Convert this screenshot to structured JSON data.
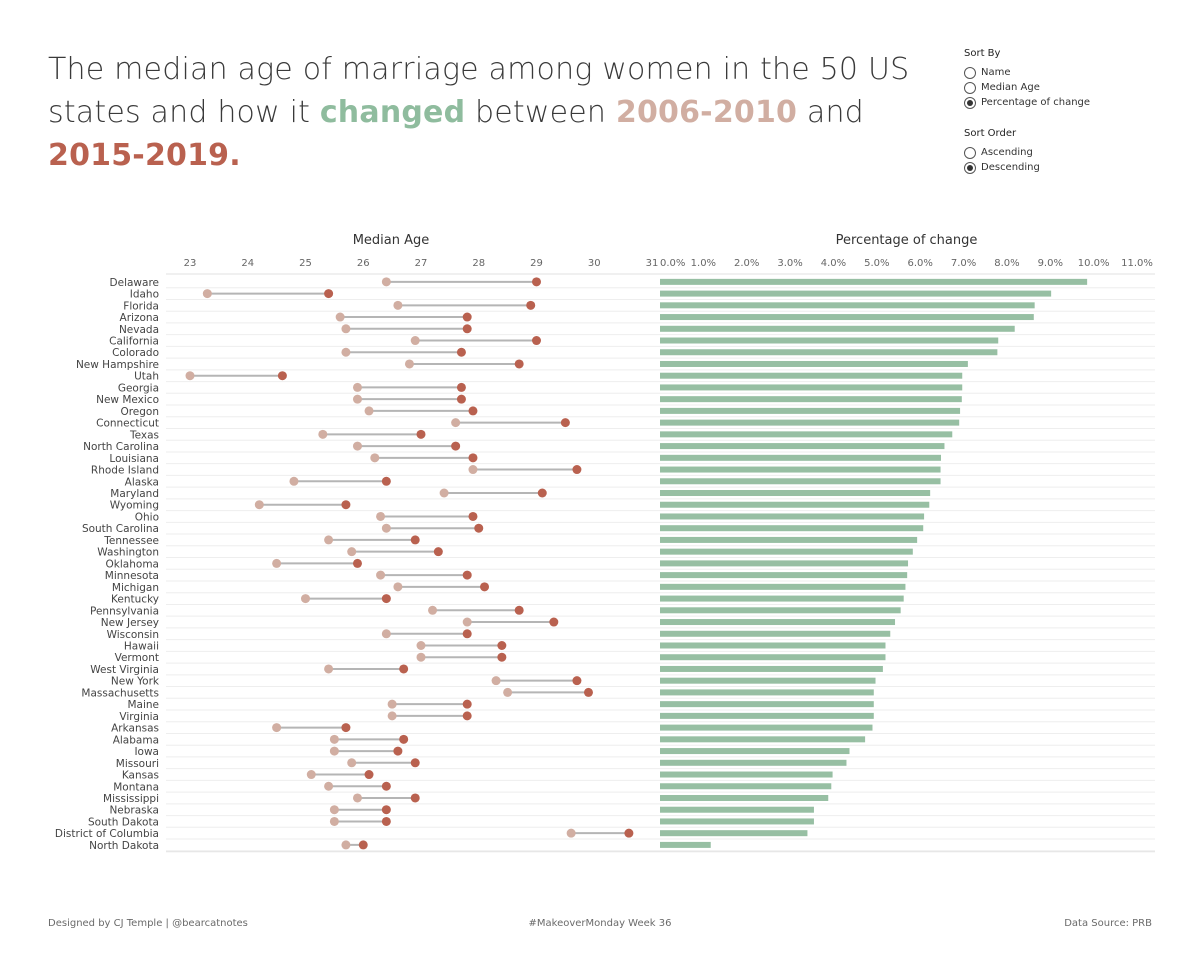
{
  "title": {
    "part1": "The median age of marriage among women in the 50 US states and how it ",
    "changed": "changed",
    "part2": " between ",
    "period1": "2006-2010",
    "part3": " and ",
    "period2": "2015-2019."
  },
  "colors": {
    "changed": "#8fbc9e",
    "period1": "#d1aea2",
    "period2": "#b9614f",
    "bar": "#97bfa3",
    "connector": "#b5b5b5",
    "title": "#3a3a3a"
  },
  "controls": {
    "sort_by": {
      "title": "Sort By",
      "options": [
        "Name",
        "Median Age",
        "Percentage of change"
      ],
      "selected": 2
    },
    "sort_order": {
      "title": "Sort Order",
      "options": [
        "Ascending",
        "Descending"
      ],
      "selected": 1
    }
  },
  "chart_data": [
    {
      "type": "dumbbell",
      "title": "Median Age",
      "xlim": [
        23,
        31
      ],
      "x_ticks": [
        "23",
        "24",
        "25",
        "26",
        "27",
        "28",
        "29",
        "30",
        "31"
      ],
      "categories": [
        "Delaware",
        "Idaho",
        "Florida",
        "Arizona",
        "Nevada",
        "California",
        "Colorado",
        "New Hampshire",
        "Utah",
        "Georgia",
        "New Mexico",
        "Oregon",
        "Connecticut",
        "Texas",
        "North Carolina",
        "Louisiana",
        "Rhode Island",
        "Alaska",
        "Maryland",
        "Wyoming",
        "Ohio",
        "South Carolina",
        "Tennessee",
        "Washington",
        "Oklahoma",
        "Minnesota",
        "Michigan",
        "Kentucky",
        "Pennsylvania",
        "New Jersey",
        "Wisconsin",
        "Hawaii",
        "Vermont",
        "West Virginia",
        "New York",
        "Massachusetts",
        "Maine",
        "Virginia",
        "Arkansas",
        "Alabama",
        "Iowa",
        "Missouri",
        "Kansas",
        "Montana",
        "Mississippi",
        "Nebraska",
        "South Dakota",
        "District of Columbia",
        "North Dakota"
      ],
      "series": [
        {
          "name": "2006-2010",
          "values": [
            26.4,
            23.3,
            26.6,
            25.6,
            25.7,
            26.9,
            25.7,
            26.8,
            23.0,
            25.9,
            25.9,
            26.1,
            27.6,
            25.3,
            25.9,
            26.2,
            27.9,
            24.8,
            27.4,
            24.2,
            26.3,
            26.4,
            25.4,
            25.8,
            24.5,
            26.3,
            26.6,
            25.0,
            27.2,
            27.8,
            26.4,
            27.0,
            27.0,
            25.4,
            28.3,
            28.5,
            26.5,
            26.5,
            24.5,
            25.5,
            25.5,
            25.8,
            25.1,
            25.4,
            25.9,
            25.5,
            25.5,
            29.6,
            25.7
          ]
        },
        {
          "name": "2015-2019",
          "values": [
            29.0,
            25.4,
            28.9,
            27.8,
            27.8,
            29.0,
            27.7,
            28.7,
            24.6,
            27.7,
            27.7,
            27.9,
            29.5,
            27.0,
            27.6,
            27.9,
            29.7,
            26.4,
            29.1,
            25.7,
            27.9,
            28.0,
            26.9,
            27.3,
            25.9,
            27.8,
            28.1,
            26.4,
            28.7,
            29.3,
            27.8,
            28.4,
            28.4,
            26.7,
            29.7,
            29.9,
            27.8,
            27.8,
            25.7,
            26.7,
            26.6,
            26.9,
            26.1,
            26.4,
            26.9,
            26.4,
            26.4,
            30.6,
            26.0
          ]
        }
      ]
    },
    {
      "type": "bar",
      "title": "Percentage of change",
      "xlim": [
        0,
        11
      ],
      "x_ticks": [
        "0.0%",
        "1.0%",
        "2.0%",
        "3.0%",
        "4.0%",
        "5.0%",
        "6.0%",
        "7.0%",
        "8.0%",
        "9.0%",
        "10.0%",
        "11.0%"
      ],
      "categories": [
        "Delaware",
        "Idaho",
        "Florida",
        "Arizona",
        "Nevada",
        "California",
        "Colorado",
        "New Hampshire",
        "Utah",
        "Georgia",
        "New Mexico",
        "Oregon",
        "Connecticut",
        "Texas",
        "North Carolina",
        "Louisiana",
        "Rhode Island",
        "Alaska",
        "Maryland",
        "Wyoming",
        "Ohio",
        "South Carolina",
        "Tennessee",
        "Washington",
        "Oklahoma",
        "Minnesota",
        "Michigan",
        "Kentucky",
        "Pennsylvania",
        "New Jersey",
        "Wisconsin",
        "Hawaii",
        "Vermont",
        "West Virginia",
        "New York",
        "Massachusetts",
        "Maine",
        "Virginia",
        "Arkansas",
        "Alabama",
        "Iowa",
        "Missouri",
        "Kansas",
        "Montana",
        "Mississippi",
        "Nebraska",
        "South Dakota",
        "District of Columbia",
        "North Dakota"
      ],
      "values": [
        9.85,
        9.02,
        8.64,
        8.62,
        8.18,
        7.8,
        7.78,
        7.1,
        6.97,
        6.97,
        6.96,
        6.92,
        6.9,
        6.74,
        6.56,
        6.48,
        6.47,
        6.47,
        6.23,
        6.21,
        6.09,
        6.07,
        5.93,
        5.83,
        5.72,
        5.7,
        5.66,
        5.62,
        5.55,
        5.42,
        5.31,
        5.2,
        5.2,
        5.14,
        4.97,
        4.93,
        4.93,
        4.93,
        4.9,
        4.73,
        4.37,
        4.3,
        3.98,
        3.95,
        3.88,
        3.55,
        3.55,
        3.4,
        1.17
      ]
    }
  ],
  "footer": {
    "left": "Designed by CJ Temple | @bearcatnotes",
    "center": "#MakeoverMonday Week 36",
    "right": "Data Source: PRB"
  }
}
